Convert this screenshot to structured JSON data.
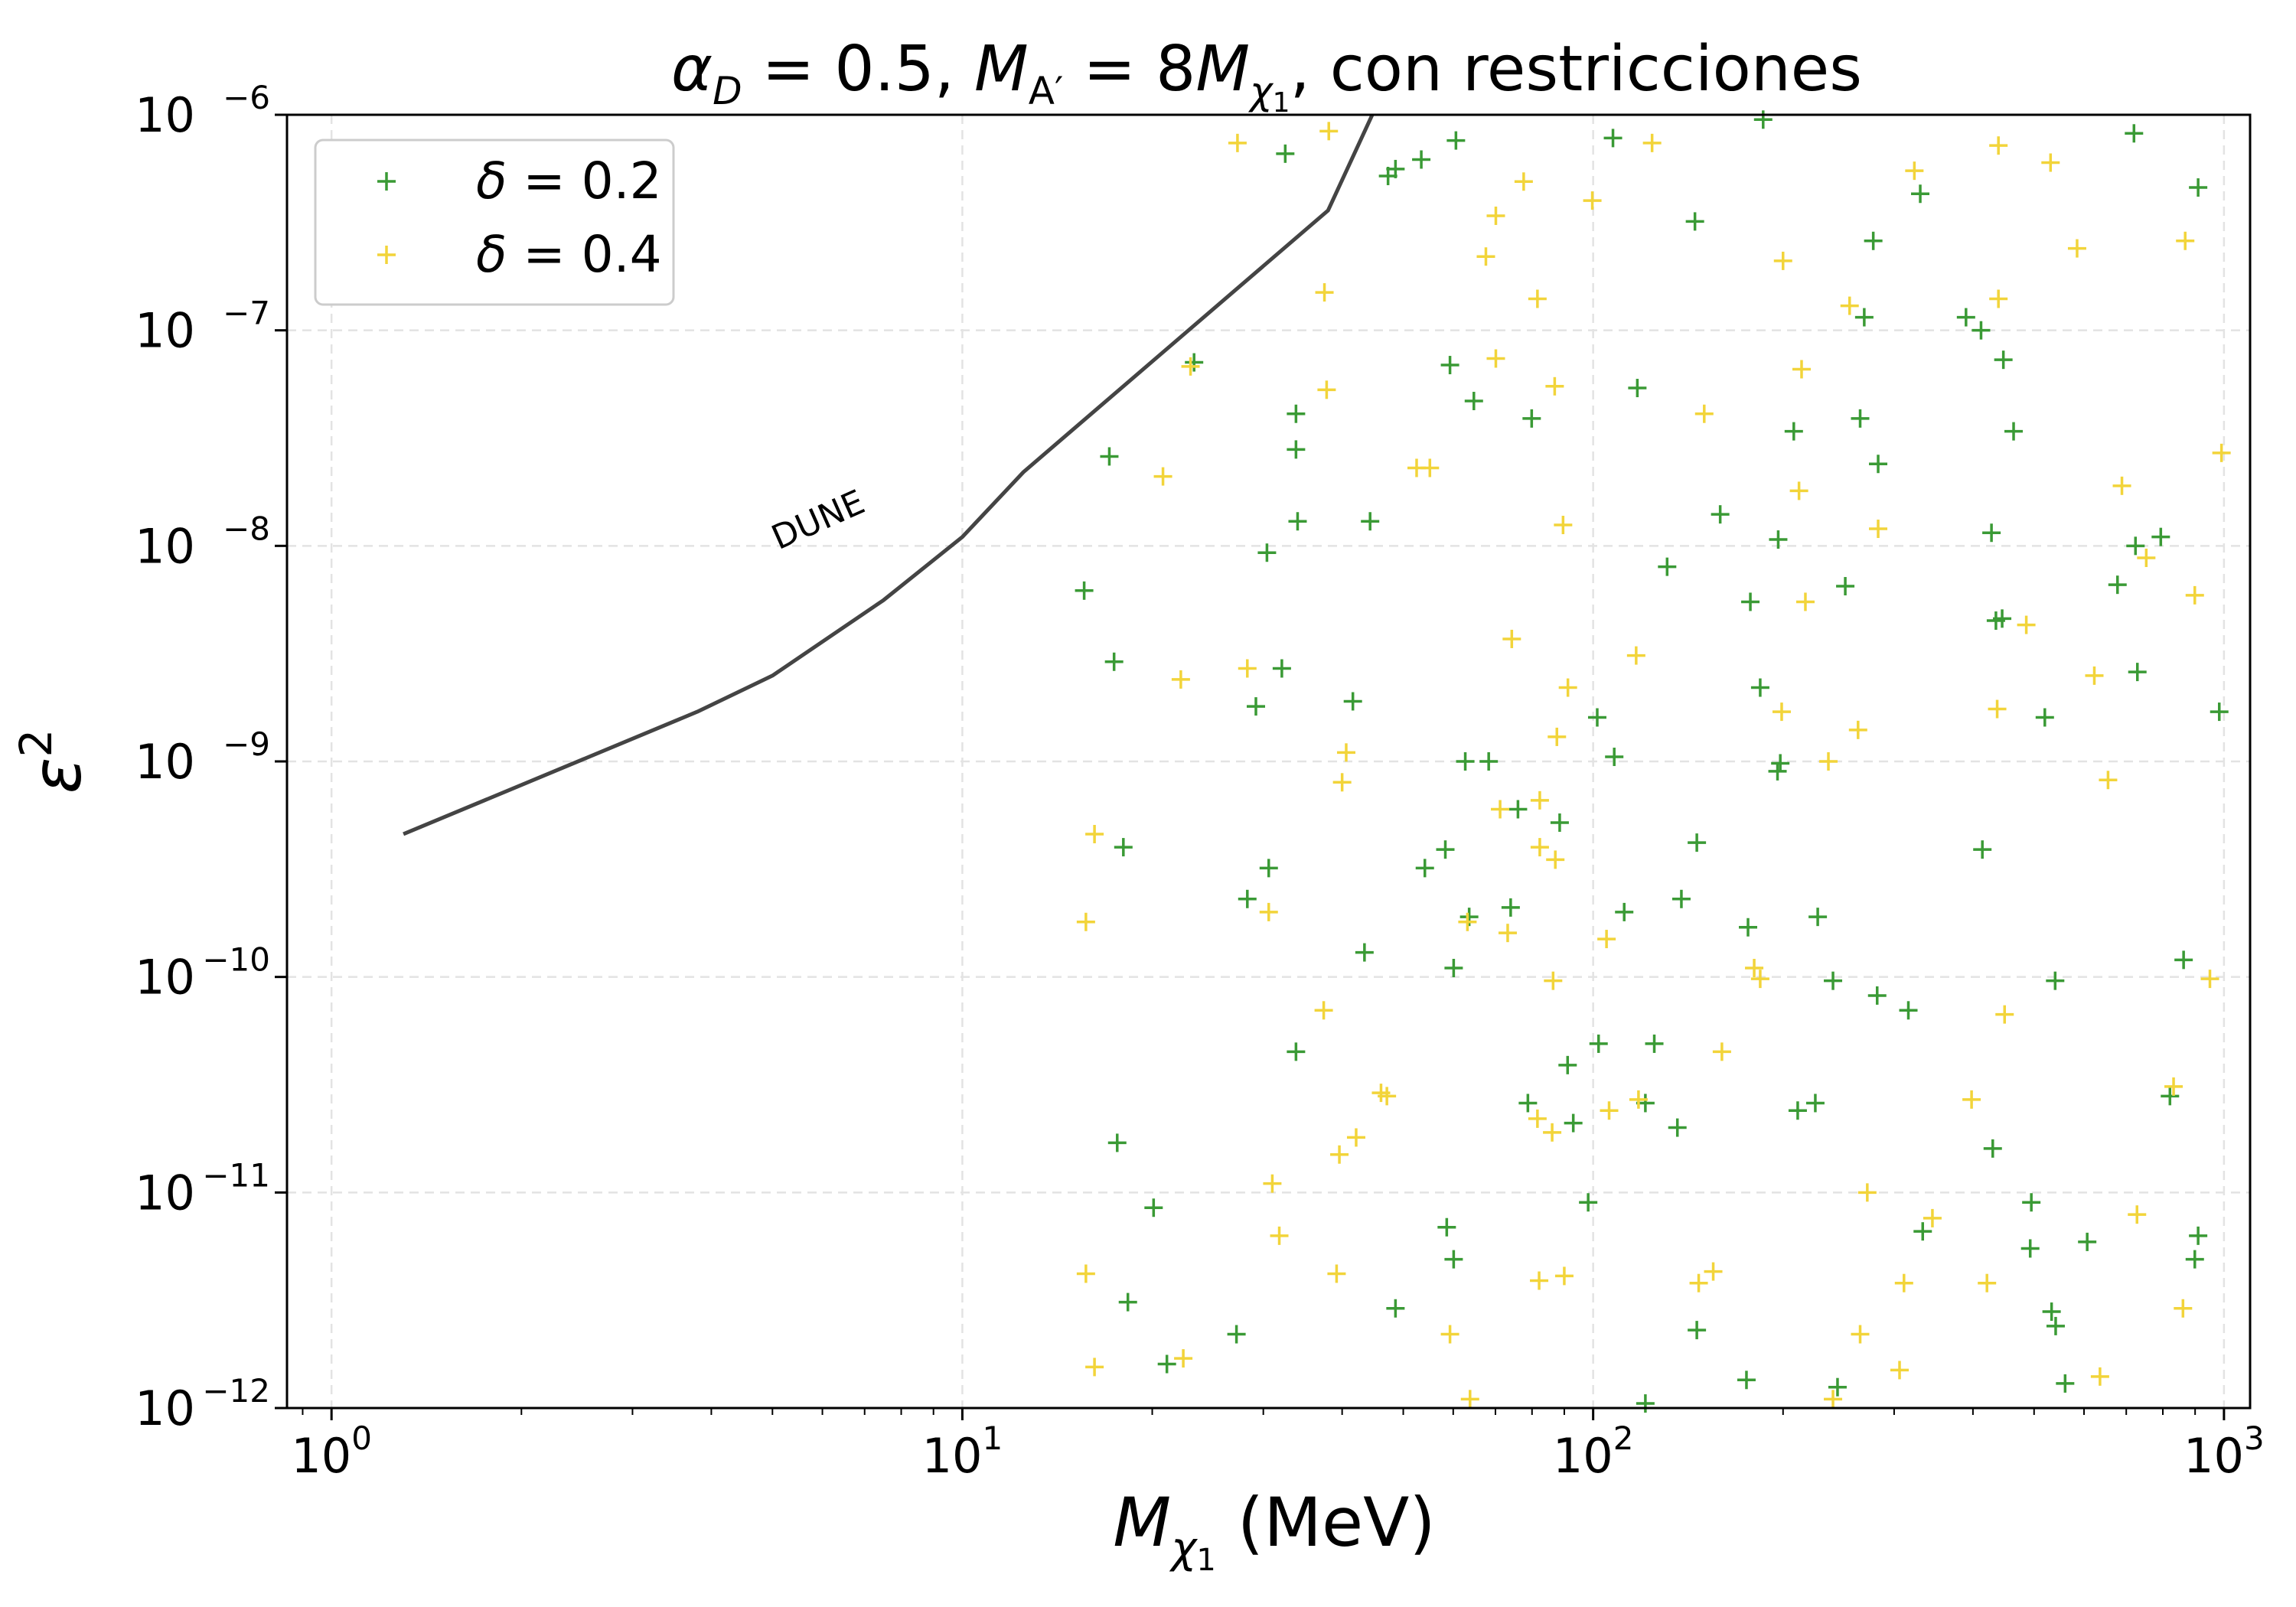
{
  "chart_data": {
    "type": "scatter",
    "title_parts": {
      "alpha": "α",
      "alpha_sub": "D",
      "eq1": " = 0.5, ",
      "mass": "M",
      "mass_sub": "A′",
      "eq2": " = 8",
      "mass2": "M",
      "mass2_sub": "χ",
      "mass2_subsub": "1",
      "rest": ", con restricciones"
    },
    "xlabel_parts": {
      "main": "M",
      "sub": "χ",
      "subsub": "1",
      "unit": " (MeV)"
    },
    "ylabel_parts": {
      "main": "ε",
      "sup": "2"
    },
    "x_scale": "log",
    "y_scale": "log",
    "xlim": [
      0.85,
      1100
    ],
    "ylim": [
      1e-12,
      1e-06
    ],
    "x_ticks": [
      {
        "base": "10",
        "exp": "0",
        "value": 1
      },
      {
        "base": "10",
        "exp": "1",
        "value": 10
      },
      {
        "base": "10",
        "exp": "2",
        "value": 100
      },
      {
        "base": "10",
        "exp": "3",
        "value": 1000
      }
    ],
    "y_ticks": [
      {
        "base": "10",
        "exp": "−12",
        "value": 1e-12
      },
      {
        "base": "10",
        "exp": "−11",
        "value": 1e-11
      },
      {
        "base": "10",
        "exp": "−10",
        "value": 1e-10
      },
      {
        "base": "10",
        "exp": "−9",
        "value": 1e-09
      },
      {
        "base": "10",
        "exp": "−8",
        "value": 1e-08
      },
      {
        "base": "10",
        "exp": "−7",
        "value": 1e-07
      },
      {
        "base": "10",
        "exp": "−6",
        "value": 1e-06
      }
    ],
    "grid": true,
    "legend_position": "top-left",
    "curve": {
      "label": "DUNE",
      "color": "#444444",
      "points": [
        [
          1.3,
          4.6e-10
        ],
        [
          3.8,
          1.7e-09
        ],
        [
          5.0,
          2.5e-09
        ],
        [
          7.5,
          5.6e-09
        ],
        [
          10.0,
          1.1e-08
        ],
        [
          12.5,
          2.2e-08
        ],
        [
          38.0,
          3.6e-07
        ],
        [
          45.0,
          1.05e-06
        ]
      ]
    },
    "series": [
      {
        "legend_symbol": "δ",
        "legend_value": " = 0.2",
        "color": "#3a9a35",
        "points": [
          [
            32.5,
            6.6e-07
          ],
          [
            47.3,
            5.2e-07
          ],
          [
            48.6,
            5.6e-07
          ],
          [
            53.4,
            6.2e-07
          ],
          [
            60.6,
            7.6e-07
          ],
          [
            107.5,
            7.8e-07
          ],
          [
            145.0,
            3.2e-07
          ],
          [
            186.0,
            9.5e-07
          ],
          [
            278.0,
            2.6e-07
          ],
          [
            330.0,
            4.3e-07
          ],
          [
            720.0,
            8.2e-07
          ],
          [
            910.0,
            4.6e-07
          ],
          [
            23.3,
            7.1e-08
          ],
          [
            17.1,
            2.6e-08
          ],
          [
            33.8,
            4.1e-08
          ],
          [
            33.8,
            2.8e-08
          ],
          [
            34.0,
            1.3e-08
          ],
          [
            30.4,
            9.3e-09
          ],
          [
            59.3,
            6.9e-08
          ],
          [
            64.7,
            4.7e-08
          ],
          [
            79.9,
            3.9e-08
          ],
          [
            117.5,
            5.4e-08
          ],
          [
            159.0,
            1.4e-08
          ],
          [
            131.0,
            8e-09
          ],
          [
            177.5,
            5.5e-09
          ],
          [
            196.5,
            1.07e-08
          ],
          [
            208.0,
            3.4e-08
          ],
          [
            269.0,
            1.15e-07
          ],
          [
            265.0,
            3.9e-08
          ],
          [
            283.0,
            2.4e-08
          ],
          [
            390.0,
            1.15e-07
          ],
          [
            412.0,
            1e-07
          ],
          [
            447.0,
            7.3e-08
          ],
          [
            464.0,
            3.4e-08
          ],
          [
            428.0,
            1.15e-08
          ],
          [
            435.0,
            4.5e-09
          ],
          [
            445.0,
            4.6e-09
          ],
          [
            724.0,
            1e-08
          ],
          [
            794.0,
            1.1e-08
          ],
          [
            729.0,
            2.6e-09
          ],
          [
            678.0,
            6.6e-09
          ],
          [
            983.0,
            1.7e-09
          ],
          [
            15.6,
            6.2e-09
          ],
          [
            17.4,
            2.9e-09
          ],
          [
            29.2,
            1.8e-09
          ],
          [
            32.1,
            2.7e-09
          ],
          [
            41.6,
            1.9e-09
          ],
          [
            101.5,
            1.6e-09
          ],
          [
            108.0,
            1.05e-09
          ],
          [
            184.0,
            2.2e-09
          ],
          [
            196.0,
            9e-10
          ],
          [
            198.0,
            9.8e-10
          ],
          [
            251.0,
            6.5e-09
          ],
          [
            520.0,
            1.6e-09
          ],
          [
            44.3,
            1.3e-08
          ],
          [
            18.0,
            4e-10
          ],
          [
            30.6,
            3.2e-10
          ],
          [
            28.3,
            2.3e-10
          ],
          [
            62.7,
            1e-09
          ],
          [
            68.3,
            1e-09
          ],
          [
            54.1,
            3.2e-10
          ],
          [
            58.3,
            3.9e-10
          ],
          [
            63.6,
            1.9e-10
          ],
          [
            74.0,
            2.1e-10
          ],
          [
            76.0,
            6e-10
          ],
          [
            88.5,
            5.2e-10
          ],
          [
            112.0,
            2e-10
          ],
          [
            138.0,
            2.3e-10
          ],
          [
            146.0,
            4.2e-10
          ],
          [
            176.0,
            1.7e-10
          ],
          [
            227.0,
            1.9e-10
          ],
          [
            240.0,
            9.6e-11
          ],
          [
            282.0,
            8.2e-11
          ],
          [
            316.0,
            7e-11
          ],
          [
            414.0,
            3.9e-10
          ],
          [
            540.0,
            9.6e-11
          ],
          [
            863.0,
            1.2e-10
          ],
          [
            60.1,
            1.1e-10
          ],
          [
            43.4,
            1.3e-10
          ],
          [
            33.8,
            4.5e-11
          ],
          [
            17.6,
            1.7e-11
          ],
          [
            20.1,
            8.5e-12
          ],
          [
            78.8,
            2.6e-11
          ],
          [
            91.1,
            3.9e-11
          ],
          [
            93.0,
            2.1e-11
          ],
          [
            102.0,
            4.9e-11
          ],
          [
            121.0,
            2.6e-11
          ],
          [
            125.0,
            4.9e-11
          ],
          [
            136.0,
            2e-11
          ],
          [
            211.0,
            2.4e-11
          ],
          [
            225.0,
            2.6e-11
          ],
          [
            430.0,
            1.6e-11
          ],
          [
            821.0,
            2.8e-11
          ],
          [
            98.2,
            9e-12
          ],
          [
            58.6,
            6.9e-12
          ],
          [
            60.1,
            4.9e-12
          ],
          [
            48.6,
            2.9e-12
          ],
          [
            27.2,
            2.2e-12
          ],
          [
            18.3,
            3.1e-12
          ],
          [
            21.1,
            1.6e-12
          ],
          [
            146.0,
            2.3e-12
          ],
          [
            175.0,
            1.35e-12
          ],
          [
            244.0,
            1.25e-12
          ],
          [
            121.0,
            1.05e-12
          ],
          [
            333.0,
            6.6e-12
          ],
          [
            495.0,
            9e-12
          ],
          [
            493.0,
            5.5e-12
          ],
          [
            533.0,
            2.8e-12
          ],
          [
            541.0,
            2.4e-12
          ],
          [
            560.0,
            1.3e-12
          ],
          [
            607.0,
            5.9e-12
          ],
          [
            910.0,
            6.3e-12
          ],
          [
            899.0,
            4.9e-12
          ]
        ]
      },
      {
        "legend_symbol": "δ",
        "legend_value": " = 0.4",
        "color": "#f2d43a",
        "points": [
          [
            27.3,
            7.4e-07
          ],
          [
            38.1,
            8.4e-07
          ],
          [
            99.7,
            4e-07
          ],
          [
            124.0,
            7.4e-07
          ],
          [
            323.0,
            5.5e-07
          ],
          [
            439.0,
            7.2e-07
          ],
          [
            531.0,
            6e-07
          ],
          [
            77.6,
            4.9e-07
          ],
          [
            70.1,
            3.4e-07
          ],
          [
            67.6,
            2.2e-07
          ],
          [
            37.5,
            1.5e-07
          ],
          [
            37.8,
            5.3e-08
          ],
          [
            23.0,
            6.8e-08
          ],
          [
            20.8,
            2.1e-08
          ],
          [
            52.5,
            2.3e-08
          ],
          [
            55.1,
            2.3e-08
          ],
          [
            70.1,
            7.4e-08
          ],
          [
            81.6,
            1.4e-07
          ],
          [
            86.9,
            5.5e-08
          ],
          [
            150.0,
            4.1e-08
          ],
          [
            200.0,
            2.1e-07
          ],
          [
            214.0,
            6.6e-08
          ],
          [
            212.0,
            1.8e-08
          ],
          [
            255.0,
            1.3e-07
          ],
          [
            283.0,
            1.2e-08
          ],
          [
            585.0,
            2.4e-07
          ],
          [
            868.0,
            2.6e-07
          ],
          [
            991.0,
            2.7e-08
          ],
          [
            439.0,
            1.4e-07
          ],
          [
            689.0,
            1.9e-08
          ],
          [
            89.6,
            1.25e-08
          ],
          [
            217.0,
            5.5e-09
          ],
          [
            22.2,
            2.4e-09
          ],
          [
            28.3,
            2.7e-09
          ],
          [
            74.3,
            3.7e-09
          ],
          [
            91.2,
            2.2e-09
          ],
          [
            117.0,
            3.1e-09
          ],
          [
            87.6,
            1.3e-09
          ],
          [
            40.6,
            1.1e-09
          ],
          [
            40.0,
            8e-10
          ],
          [
            199.0,
            1.7e-09
          ],
          [
            236.0,
            1e-09
          ],
          [
            263.0,
            1.4e-09
          ],
          [
            437.0,
            1.75e-09
          ],
          [
            486.0,
            4.3e-09
          ],
          [
            623.0,
            2.5e-09
          ],
          [
            655.0,
            8.2e-10
          ],
          [
            753.0,
            8.8e-09
          ],
          [
            899.0,
            5.9e-09
          ],
          [
            16.2,
            4.6e-10
          ],
          [
            15.7,
            1.8e-10
          ],
          [
            30.6,
            2e-10
          ],
          [
            63.2,
            1.8e-10
          ],
          [
            71.2,
            6e-10
          ],
          [
            73.2,
            1.6e-10
          ],
          [
            82.3,
            6.6e-10
          ],
          [
            82.3,
            4e-10
          ],
          [
            87.1,
            3.5e-10
          ],
          [
            86.4,
            9.6e-11
          ],
          [
            105.0,
            1.5e-10
          ],
          [
            180.0,
            1.1e-10
          ],
          [
            184.0,
            9.8e-11
          ],
          [
            37.4,
            7e-11
          ],
          [
            950.0,
            9.8e-11
          ],
          [
            46.1,
            2.9e-11
          ],
          [
            47.1,
            2.8e-11
          ],
          [
            42.1,
            1.8e-11
          ],
          [
            39.6,
            1.5e-11
          ],
          [
            31.0,
            1.1e-11
          ],
          [
            31.8,
            6.3e-12
          ],
          [
            39.2,
            4.2e-12
          ],
          [
            15.7,
            4.2e-12
          ],
          [
            16.2,
            1.55e-12
          ],
          [
            22.4,
            1.7e-12
          ],
          [
            59.3,
            2.2e-12
          ],
          [
            63.8,
            1.1e-12
          ],
          [
            81.6,
            2.2e-11
          ],
          [
            86.1,
            1.9e-11
          ],
          [
            90.0,
            4.1e-12
          ],
          [
            82.1,
            3.9e-12
          ],
          [
            106.0,
            2.4e-11
          ],
          [
            118.0,
            2.7e-11
          ],
          [
            160.0,
            4.5e-11
          ],
          [
            147.0,
            3.8e-12
          ],
          [
            155.0,
            4.3e-12
          ],
          [
            265.0,
            2.2e-12
          ],
          [
            272.0,
            1e-11
          ],
          [
            240.0,
            1.1e-12
          ],
          [
            311.0,
            3.8e-12
          ],
          [
            306.0,
            1.5e-12
          ],
          [
            345.0,
            7.6e-12
          ],
          [
            398.0,
            2.7e-11
          ],
          [
            449.0,
            6.7e-11
          ],
          [
            421.0,
            3.8e-12
          ],
          [
            636.0,
            1.4e-12
          ],
          [
            728.0,
            7.9e-12
          ],
          [
            832.0,
            3.1e-11
          ],
          [
            861.0,
            2.9e-12
          ]
        ]
      }
    ]
  }
}
